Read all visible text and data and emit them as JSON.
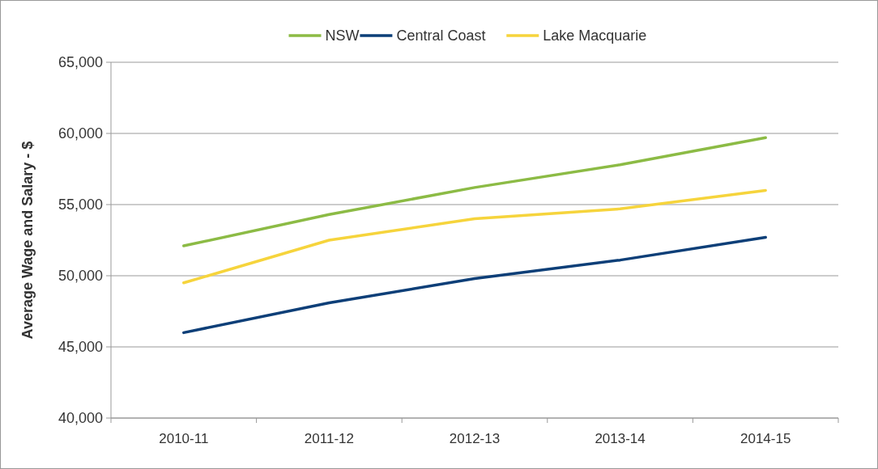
{
  "chart_data": {
    "type": "line",
    "ylabel": "Average Wage and Salary - $",
    "categories": [
      "2010-11",
      "2011-12",
      "2012-13",
      "2013-14",
      "2014-15"
    ],
    "series": [
      {
        "name": "NSW",
        "color": "#8cbb45",
        "values": [
          52100,
          54300,
          56200,
          57800,
          59700
        ]
      },
      {
        "name": "Central Coast",
        "color": "#0d3f78",
        "values": [
          46000,
          48100,
          49800,
          51100,
          52700
        ]
      },
      {
        "name": "Lake Macquarie",
        "color": "#f6d43c",
        "values": [
          49500,
          52500,
          54000,
          54700,
          56000
        ]
      }
    ],
    "ylim": [
      40000,
      65000
    ],
    "yticks": [
      {
        "value": 40000,
        "label": "40,000"
      },
      {
        "value": 45000,
        "label": "45,000"
      },
      {
        "value": 50000,
        "label": "50,000"
      },
      {
        "value": 55000,
        "label": "55,000"
      },
      {
        "value": 60000,
        "label": "60,000"
      },
      {
        "value": 65000,
        "label": "65,000"
      }
    ],
    "grid": "y",
    "legend": "top",
    "marker": "none",
    "line_style": "solid"
  }
}
